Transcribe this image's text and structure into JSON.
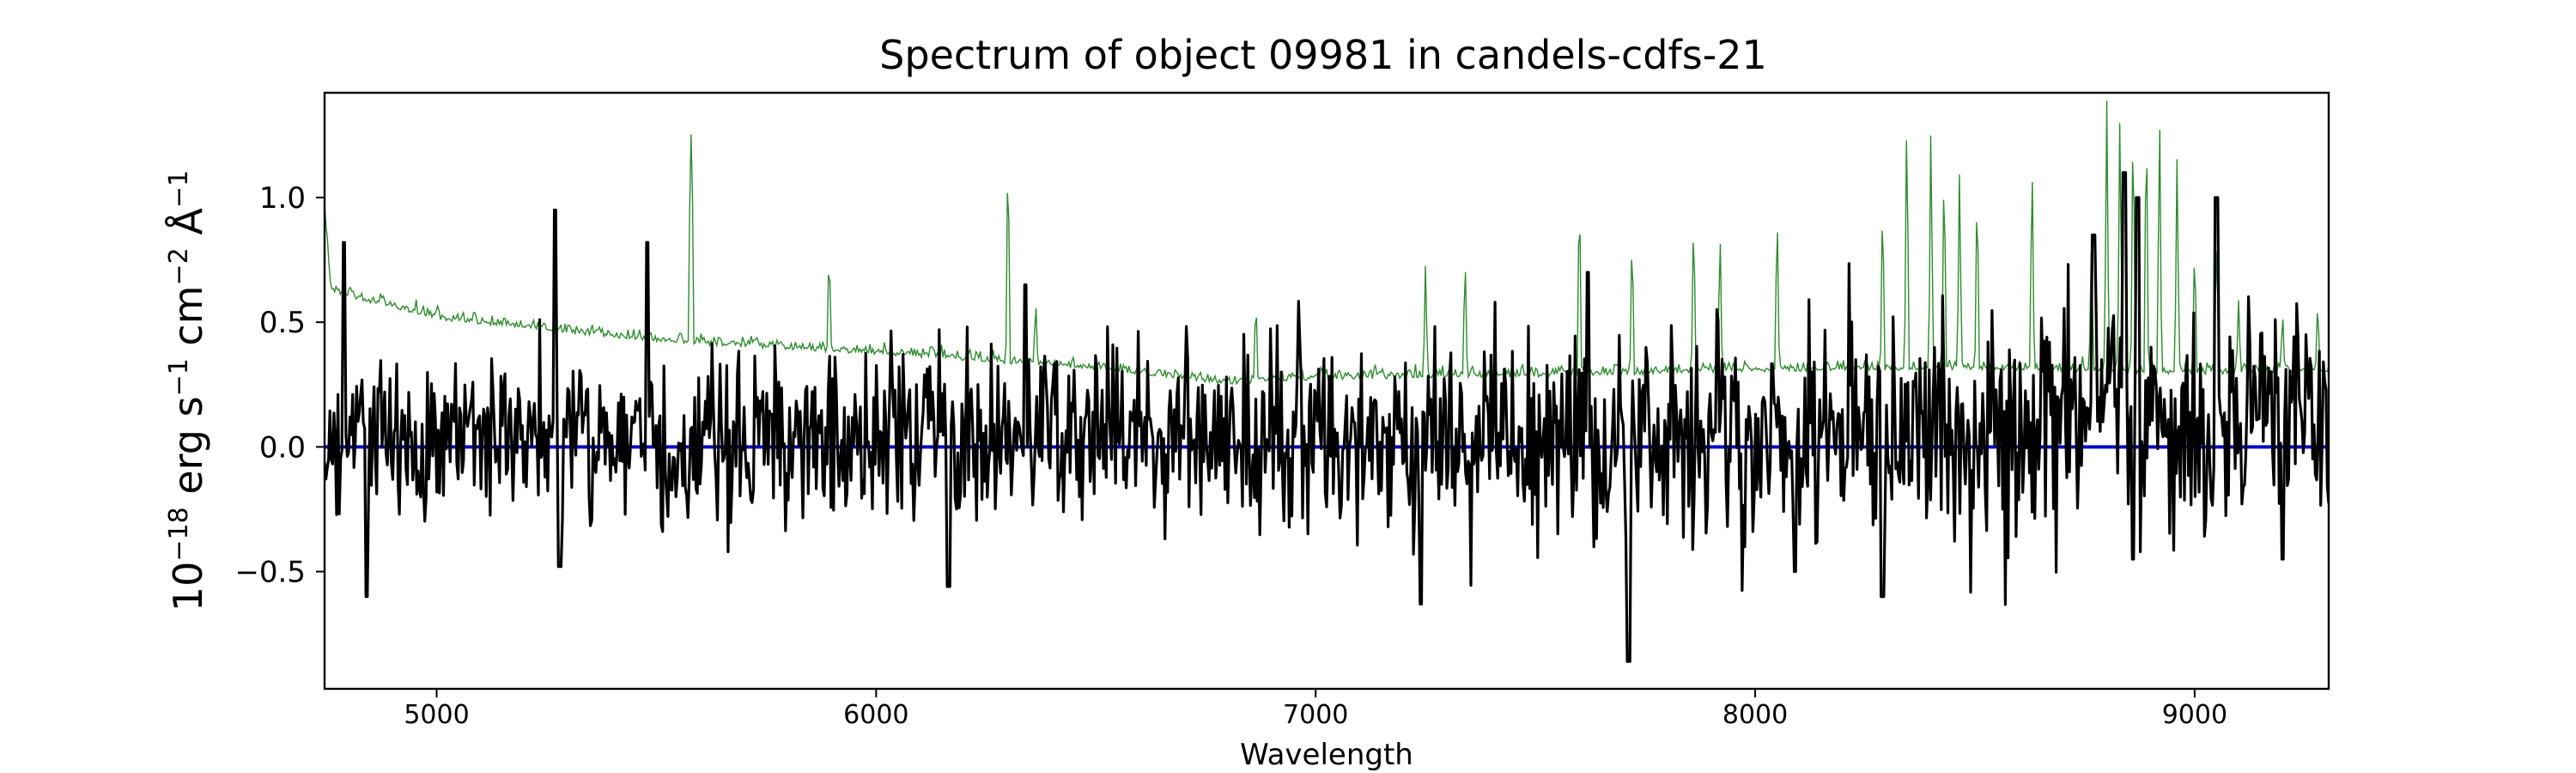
{
  "chart_data": {
    "type": "line",
    "title": "Spectrum of object 09981 in candels-cdfs-21",
    "xlabel": "Wavelength",
    "ylabel_parts": {
      "base": "10",
      "exp1": "−18",
      "erg": " erg s",
      "exp2": "−1",
      "cm": " cm",
      "exp3": "−2",
      "ang": " Å",
      "exp4": "−1"
    },
    "xlim": [
      4745,
      9305
    ],
    "ylim": [
      -0.97,
      1.42
    ],
    "xticks": [
      5000,
      6000,
      7000,
      8000,
      9000
    ],
    "xtick_labels": [
      "5000",
      "6000",
      "7000",
      "8000",
      "9000"
    ],
    "yticks": [
      -0.5,
      0.0,
      0.5,
      1.0
    ],
    "ytick_labels": [
      "−0.5",
      "0.0",
      "0.5",
      "1.0"
    ],
    "grid": false,
    "series": [
      {
        "role": "flux",
        "color": "#000000",
        "x_range": [
          4745,
          9305
        ],
        "points": 1500,
        "noise_sigma": [
          0.22,
          0.3
        ],
        "features": [
          [
            4840,
            -0.6
          ],
          [
            5280,
            -0.48
          ],
          [
            6165,
            -0.56
          ],
          [
            7240,
            -0.63
          ],
          [
            7712,
            -0.86
          ],
          [
            8090,
            -0.5
          ],
          [
            8290,
            -0.6
          ],
          [
            8860,
            -0.45
          ],
          [
            9200,
            -0.45
          ],
          [
            4790,
            0.82
          ],
          [
            5480,
            0.82
          ],
          [
            5270,
            0.95
          ],
          [
            9050,
            1.0
          ],
          [
            8870,
            1.0
          ],
          [
            8840,
            1.1
          ],
          [
            8770,
            0.85
          ],
          [
            7620,
            0.7
          ],
          [
            6340,
            0.65
          ]
        ]
      },
      {
        "role": "error",
        "color": "#2e8b2e",
        "x_range": [
          4745,
          9305
        ],
        "baseline": [
          [
            4745,
            0.95
          ],
          [
            4760,
            0.62
          ],
          [
            4800,
            0.6
          ],
          [
            5000,
            0.51
          ],
          [
            5500,
            0.42
          ],
          [
            6000,
            0.37
          ],
          [
            6500,
            0.31
          ],
          [
            6800,
            0.25
          ],
          [
            7000,
            0.27
          ],
          [
            7500,
            0.28
          ],
          [
            8000,
            0.3
          ],
          [
            8500,
            0.31
          ],
          [
            9000,
            0.29
          ],
          [
            9305,
            0.3
          ]
        ],
        "spikes": [
          [
            5578,
            1.42
          ],
          [
            5580,
            1.42
          ],
          [
            5893,
            0.82
          ],
          [
            6300,
            1.27
          ],
          [
            6363,
            0.6
          ],
          [
            6864,
            0.62
          ],
          [
            7250,
            0.75
          ],
          [
            7340,
            0.8
          ],
          [
            7600,
            1.1
          ],
          [
            7720,
            0.9
          ],
          [
            7860,
            0.98
          ],
          [
            7920,
            0.9
          ],
          [
            8050,
            1.0
          ],
          [
            8290,
            1.05
          ],
          [
            8345,
            1.42
          ],
          [
            8400,
            1.35
          ],
          [
            8430,
            1.2
          ],
          [
            8465,
            1.15
          ],
          [
            8505,
            1.1
          ],
          [
            8630,
            1.2
          ],
          [
            8765,
            0.85
          ],
          [
            8800,
            1.42
          ],
          [
            8830,
            1.42
          ],
          [
            8860,
            1.42
          ],
          [
            8890,
            1.42
          ],
          [
            8920,
            1.42
          ],
          [
            8960,
            1.2
          ],
          [
            9000,
            0.85
          ],
          [
            9050,
            0.9
          ],
          [
            9100,
            0.6
          ],
          [
            9200,
            0.55
          ],
          [
            9280,
            0.6
          ]
        ]
      },
      {
        "role": "zero",
        "color": "#0000cc",
        "x": [
          4745,
          9305
        ],
        "y": [
          0.0,
          0.0
        ]
      }
    ]
  }
}
